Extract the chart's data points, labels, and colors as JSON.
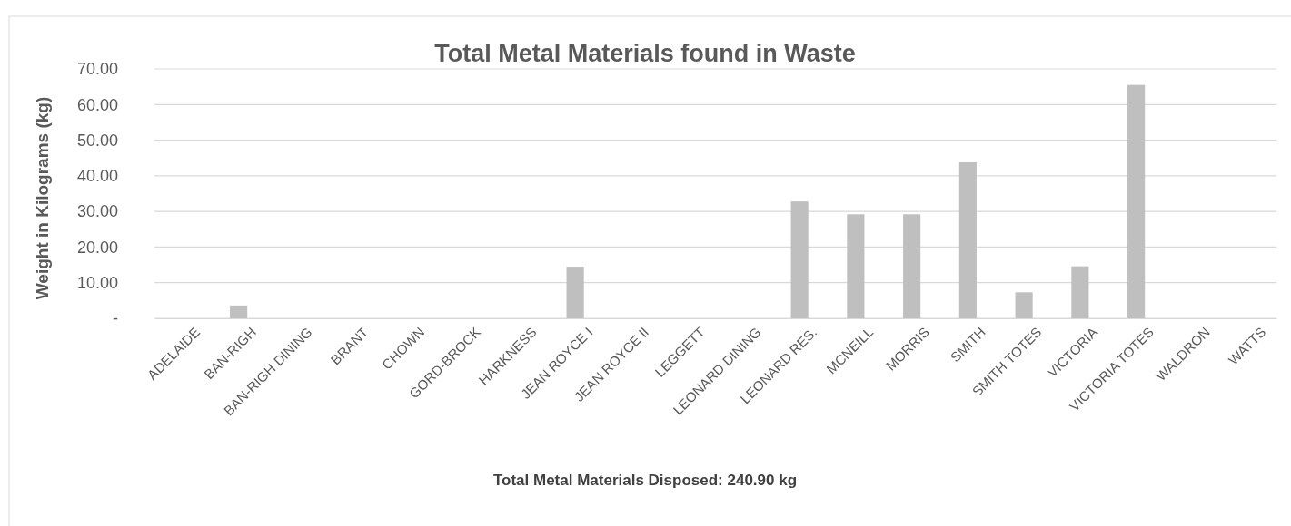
{
  "chart_data": {
    "type": "bar",
    "title": "Total Metal Materials found in Waste",
    "ylabel": "Weight in Kilograms (kg)",
    "annotations": [
      "Total Metal Materials Disposed: 240.90 kg"
    ],
    "categories": [
      "ADELAIDE",
      "BAN-RIGH",
      "BAN-RIGH DINING",
      "BRANT",
      "CHOWN",
      "GORD-BROCK",
      "HARKNESS",
      "JEAN ROYCE I",
      "JEAN ROYCE II",
      "LEGGETT",
      "LEONARD DINING",
      "LEONARD RES.",
      "MCNEILL",
      "MORRIS",
      "SMITH",
      "SMITH TOTES",
      "VICTORIA",
      "VICTORIA TOTES",
      "WALDRON",
      "WATTS"
    ],
    "values": [
      0,
      3.6,
      0,
      0,
      0,
      0,
      0,
      14.5,
      0,
      0,
      0,
      32.8,
      29.2,
      29.2,
      43.8,
      7.3,
      14.6,
      65.5,
      0,
      0
    ],
    "color": "#bfbfbf",
    "ylim": [
      0,
      70
    ],
    "yticks": [
      {
        "value": 0,
        "label": "-"
      },
      {
        "value": 10,
        "label": "10.00"
      },
      {
        "value": 20,
        "label": "20.00"
      },
      {
        "value": 30,
        "label": "30.00"
      },
      {
        "value": 40,
        "label": "40.00"
      },
      {
        "value": 50,
        "label": "50.00"
      },
      {
        "value": 60,
        "label": "60.00"
      },
      {
        "value": 70,
        "label": "70.00"
      }
    ],
    "grid": "y"
  }
}
